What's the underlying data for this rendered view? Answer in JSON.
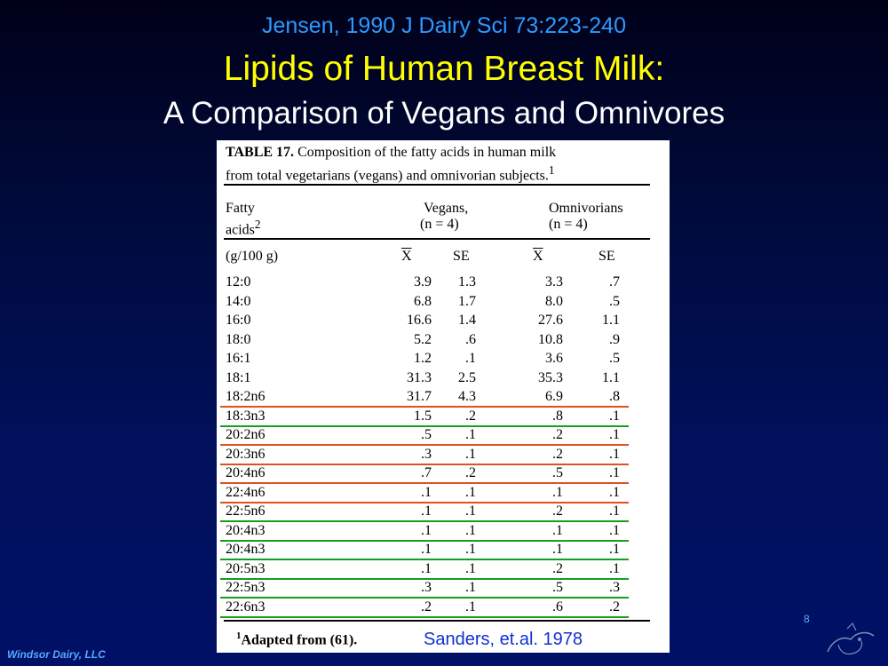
{
  "header": {
    "citation": "Jensen, 1990 J Dairy Sci 73:223-240",
    "title": "Lipids of Human Breast Milk:",
    "subtitle": "A Comparison of Vegans and Omnivores"
  },
  "table": {
    "caption_label": "TABLE 17.",
    "caption_text_line1": "Composition of the fatty acids in human milk",
    "caption_text_line2": "from total vegetarians (vegans) and omnivorian subjects.",
    "caption_sup": "1",
    "col_fatty_line1": "Fatty",
    "col_fatty_line2": "acids",
    "col_fatty_sup": "2",
    "group_vegans": "Vegans,",
    "group_vegans_n": "(n = 4)",
    "group_omni": "Omnivorians",
    "group_omni_n": "(n = 4)",
    "units": "(g/100 g)",
    "mean_label": "X",
    "se_label": "SE",
    "rows": [
      {
        "acid": "12:0",
        "v_mean": "3.9",
        "v_se": "1.3",
        "o_mean": "3.3",
        "o_se": ".7",
        "underline": ""
      },
      {
        "acid": "14:0",
        "v_mean": "6.8",
        "v_se": "1.7",
        "o_mean": "8.0",
        "o_se": ".5",
        "underline": ""
      },
      {
        "acid": "16:0",
        "v_mean": "16.6",
        "v_se": "1.4",
        "o_mean": "27.6",
        "o_se": "1.1",
        "underline": ""
      },
      {
        "acid": "18:0",
        "v_mean": "5.2",
        "v_se": ".6",
        "o_mean": "10.8",
        "o_se": ".9",
        "underline": ""
      },
      {
        "acid": "16:1",
        "v_mean": "1.2",
        "v_se": ".1",
        "o_mean": "3.6",
        "o_se": ".5",
        "underline": ""
      },
      {
        "acid": "18:1",
        "v_mean": "31.3",
        "v_se": "2.5",
        "o_mean": "35.3",
        "o_se": "1.1",
        "underline": ""
      },
      {
        "acid": "18:2n6",
        "v_mean": "31.7",
        "v_se": "4.3",
        "o_mean": "6.9",
        "o_se": ".8",
        "underline": "red"
      },
      {
        "acid": "18:3n3",
        "v_mean": "1.5",
        "v_se": ".2",
        "o_mean": ".8",
        "o_se": ".1",
        "underline": "green"
      },
      {
        "acid": "20:2n6",
        "v_mean": ".5",
        "v_se": ".1",
        "o_mean": ".2",
        "o_se": ".1",
        "underline": "red"
      },
      {
        "acid": "20:3n6",
        "v_mean": ".3",
        "v_se": ".1",
        "o_mean": ".2",
        "o_se": ".1",
        "underline": "red"
      },
      {
        "acid": "20:4n6",
        "v_mean": ".7",
        "v_se": ".2",
        "o_mean": ".5",
        "o_se": ".1",
        "underline": "red"
      },
      {
        "acid": "22:4n6",
        "v_mean": ".1",
        "v_se": ".1",
        "o_mean": ".1",
        "o_se": ".1",
        "underline": "red"
      },
      {
        "acid": "22:5n6",
        "v_mean": ".1",
        "v_se": ".1",
        "o_mean": ".2",
        "o_se": ".1",
        "underline": "green"
      },
      {
        "acid": "20:4n3",
        "v_mean": ".1",
        "v_se": ".1",
        "o_mean": ".1",
        "o_se": ".1",
        "underline": "green"
      },
      {
        "acid": "20:4n3",
        "v_mean": ".1",
        "v_se": ".1",
        "o_mean": ".1",
        "o_se": ".1",
        "underline": "green"
      },
      {
        "acid": "20:5n3",
        "v_mean": ".1",
        "v_se": ".1",
        "o_mean": ".2",
        "o_se": ".1",
        "underline": "green"
      },
      {
        "acid": "22:5n3",
        "v_mean": ".3",
        "v_se": ".1",
        "o_mean": ".5",
        "o_se": ".3",
        "underline": "green"
      },
      {
        "acid": "22:6n3",
        "v_mean": ".2",
        "v_se": ".1",
        "o_mean": ".6",
        "o_se": ".2",
        "underline": "green"
      }
    ],
    "footnote_sup": "1",
    "footnote": "Adapted from (61).",
    "source": "Sanders, et.al. 1978"
  },
  "footer": {
    "company": "Windsor Dairy, LLC",
    "slide_number": "8"
  },
  "colors": {
    "citation": "#2b9bff",
    "title": "#ffff00",
    "subtitle": "#ffffff",
    "underline_red": "#e05020",
    "underline_green": "#12a020",
    "source": "#1030d0"
  }
}
